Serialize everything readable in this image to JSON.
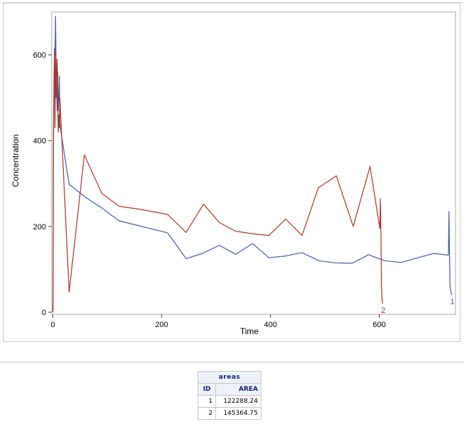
{
  "chart_data": {
    "type": "line",
    "title": "",
    "xlabel": "Time",
    "ylabel": "Concentration",
    "xlim": [
      -2,
      740
    ],
    "ylim": [
      -5,
      700
    ],
    "x_ticks": [
      0,
      200,
      400,
      600
    ],
    "y_ticks": [
      0,
      200,
      400,
      600
    ],
    "grid": false,
    "legend": "none",
    "series": [
      {
        "color": "#4a5a9e",
        "end_label": "1",
        "points": [
          [
            0,
            0
          ],
          [
            0.5,
            40
          ],
          [
            1,
            360
          ],
          [
            2,
            500
          ],
          [
            3,
            615
          ],
          [
            4,
            600
          ],
          [
            5,
            690
          ],
          [
            6,
            580
          ],
          [
            7,
            520
          ],
          [
            8,
            470
          ],
          [
            9,
            560
          ],
          [
            10,
            470
          ],
          [
            11,
            500
          ],
          [
            12,
            550
          ],
          [
            13,
            440
          ],
          [
            15,
            420
          ],
          [
            30,
            298
          ],
          [
            60,
            268
          ],
          [
            90,
            243
          ],
          [
            122,
            213
          ],
          [
            211,
            185
          ],
          [
            245,
            125
          ],
          [
            275,
            137
          ],
          [
            306,
            156
          ],
          [
            336,
            135
          ],
          [
            367,
            160
          ],
          [
            397,
            127
          ],
          [
            428,
            131
          ],
          [
            458,
            139
          ],
          [
            489,
            120
          ],
          [
            519,
            115
          ],
          [
            550,
            114
          ],
          [
            580,
            134
          ],
          [
            610,
            120
          ],
          [
            640,
            116
          ],
          [
            665,
            125
          ],
          [
            700,
            137
          ],
          [
            727,
            133
          ],
          [
            728,
            235
          ],
          [
            729,
            140
          ],
          [
            730,
            60
          ],
          [
            733,
            40
          ]
        ]
      },
      {
        "color": "#a8362a",
        "end_label": "2",
        "points": [
          [
            0,
            0
          ],
          [
            0.5,
            5
          ],
          [
            1,
            400
          ],
          [
            2,
            520
          ],
          [
            3,
            600
          ],
          [
            4,
            430
          ],
          [
            5,
            610
          ],
          [
            6,
            500
          ],
          [
            7,
            560
          ],
          [
            8,
            590
          ],
          [
            9,
            490
          ],
          [
            10,
            420
          ],
          [
            11,
            460
          ],
          [
            12,
            430
          ],
          [
            13,
            500
          ],
          [
            30,
            47
          ],
          [
            58,
            367
          ],
          [
            90,
            277
          ],
          [
            122,
            247
          ],
          [
            160,
            240
          ],
          [
            211,
            228
          ],
          [
            245,
            186
          ],
          [
            277,
            252
          ],
          [
            306,
            209
          ],
          [
            336,
            189
          ],
          [
            366,
            183
          ],
          [
            397,
            179
          ],
          [
            428,
            217
          ],
          [
            458,
            179
          ],
          [
            488,
            290
          ],
          [
            521,
            318
          ],
          [
            552,
            200
          ],
          [
            583,
            340
          ],
          [
            601,
            195
          ],
          [
            602,
            265
          ],
          [
            603,
            180
          ],
          [
            604,
            60
          ],
          [
            605,
            30
          ],
          [
            606,
            20
          ]
        ]
      }
    ]
  },
  "table": {
    "title": "areas",
    "columns": [
      "ID",
      "AREA"
    ],
    "rows": [
      [
        "1",
        "122288.24"
      ],
      [
        "2",
        "145364.75"
      ]
    ]
  }
}
